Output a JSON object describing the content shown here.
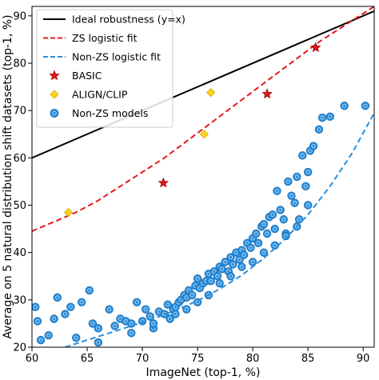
{
  "chart_data": {
    "type": "scatter",
    "xlabel": "ImageNet (top-1, %)",
    "ylabel": "Average on 5 natural distribution shift datasets (top-1, %)",
    "xlim": [
      60,
      91
    ],
    "ylim": [
      20,
      92
    ],
    "xticks": [
      60,
      65,
      70,
      75,
      80,
      85,
      90
    ],
    "yticks": [
      20,
      30,
      40,
      50,
      60,
      70,
      80,
      90
    ],
    "grid": false,
    "legend_position": "top-left",
    "series": [
      {
        "name": "Ideal robustness (y=x)",
        "kind": "line",
        "color": "#000000",
        "dash": "solid",
        "x": [
          60,
          91
        ],
        "y": [
          60,
          91
        ]
      },
      {
        "name": "ZS logistic fit",
        "kind": "line",
        "color": "#e31a1c",
        "dash": "dashed",
        "x": [
          60,
          62,
          64,
          66,
          68,
          70,
          72,
          74,
          76,
          78,
          80,
          82,
          84,
          86,
          88,
          90,
          91
        ],
        "y": [
          44.5,
          46.5,
          48.5,
          51.0,
          54.0,
          57.0,
          60.0,
          63.5,
          67.0,
          70.5,
          74.0,
          77.5,
          81.0,
          84.5,
          87.5,
          90.5,
          92.0
        ]
      },
      {
        "name": "Non-ZS logistic fit",
        "kind": "line",
        "color": "#2b8fdc",
        "dash": "dashed",
        "x": [
          63,
          65,
          67,
          69,
          71,
          73,
          75,
          77,
          79,
          81,
          83,
          85,
          87,
          89,
          91
        ],
        "y": [
          20.0,
          21.5,
          23.0,
          24.5,
          26.0,
          27.8,
          29.8,
          32.3,
          35.2,
          38.8,
          43.0,
          48.0,
          54.0,
          61.0,
          69.5
        ]
      },
      {
        "name": "BASIC",
        "kind": "star",
        "color": "#e31a1c",
        "x": [
          71.9,
          81.3,
          85.7
        ],
        "y": [
          54.7,
          73.5,
          83.3
        ]
      },
      {
        "name": "ALIGN/CLIP",
        "kind": "diamond",
        "color": "#ffd21f",
        "x": [
          63.3,
          75.6,
          76.2
        ],
        "y": [
          48.5,
          65.0,
          73.8
        ]
      },
      {
        "name": "Non-ZS models",
        "kind": "circle",
        "color": "#2b8fdc",
        "x": [
          60.3,
          60.5,
          60.8,
          61.5,
          62.0,
          62.3,
          63.0,
          63.5,
          64.0,
          64.5,
          65.2,
          65.5,
          66.0,
          67.0,
          67.5,
          68.0,
          68.5,
          69.0,
          69.5,
          70.0,
          70.3,
          70.7,
          71.0,
          71.5,
          72.0,
          72.3,
          72.5,
          72.8,
          73.0,
          73.3,
          73.5,
          73.8,
          74.0,
          74.2,
          74.5,
          74.8,
          75.0,
          75.2,
          75.5,
          75.8,
          76.0,
          76.2,
          76.5,
          76.8,
          77.0,
          77.2,
          77.5,
          77.8,
          78.0,
          78.2,
          78.5,
          78.8,
          79.0,
          79.2,
          79.5,
          79.8,
          80.0,
          80.3,
          80.5,
          80.8,
          81.0,
          81.3,
          81.5,
          81.8,
          82.0,
          82.2,
          82.5,
          82.8,
          83.0,
          83.2,
          83.5,
          83.8,
          84.0,
          84.2,
          84.5,
          84.8,
          85.0,
          85.2,
          85.5,
          86.0,
          86.3,
          87.0,
          88.3,
          90.2,
          75.0,
          76.0,
          77.0,
          78.0,
          79.0,
          80.0,
          81.0,
          82.0,
          83.0,
          84.0,
          85.0,
          73.0,
          74.0,
          71.0,
          69.0,
          66.0
        ],
        "y": [
          28.5,
          25.5,
          21.5,
          22.5,
          26.0,
          30.5,
          27.0,
          28.5,
          22.0,
          29.5,
          32.0,
          25.0,
          24.0,
          28.0,
          24.5,
          26.0,
          25.5,
          25.0,
          29.5,
          25.5,
          28.0,
          26.5,
          24.0,
          27.5,
          27.0,
          29.0,
          26.0,
          28.0,
          28.5,
          29.5,
          30.0,
          31.0,
          30.5,
          32.0,
          31.0,
          33.0,
          34.5,
          32.5,
          33.5,
          34.0,
          35.5,
          34.0,
          36.0,
          35.0,
          37.0,
          36.5,
          38.0,
          36.0,
          39.0,
          37.5,
          40.0,
          38.5,
          40.5,
          39.5,
          42.0,
          41.0,
          43.0,
          44.0,
          42.0,
          45.5,
          46.0,
          44.0,
          47.5,
          48.0,
          45.0,
          53.0,
          49.0,
          47.0,
          44.0,
          55.0,
          52.0,
          50.5,
          56.0,
          47.0,
          60.5,
          54.0,
          57.0,
          61.5,
          62.5,
          66.0,
          68.5,
          68.7,
          71.0,
          71.0,
          29.5,
          31.0,
          33.5,
          35.0,
          37.0,
          38.0,
          40.0,
          41.5,
          43.5,
          45.5,
          50.0,
          27.0,
          28.0,
          25.0,
          23.0,
          21.0
        ]
      }
    ]
  }
}
